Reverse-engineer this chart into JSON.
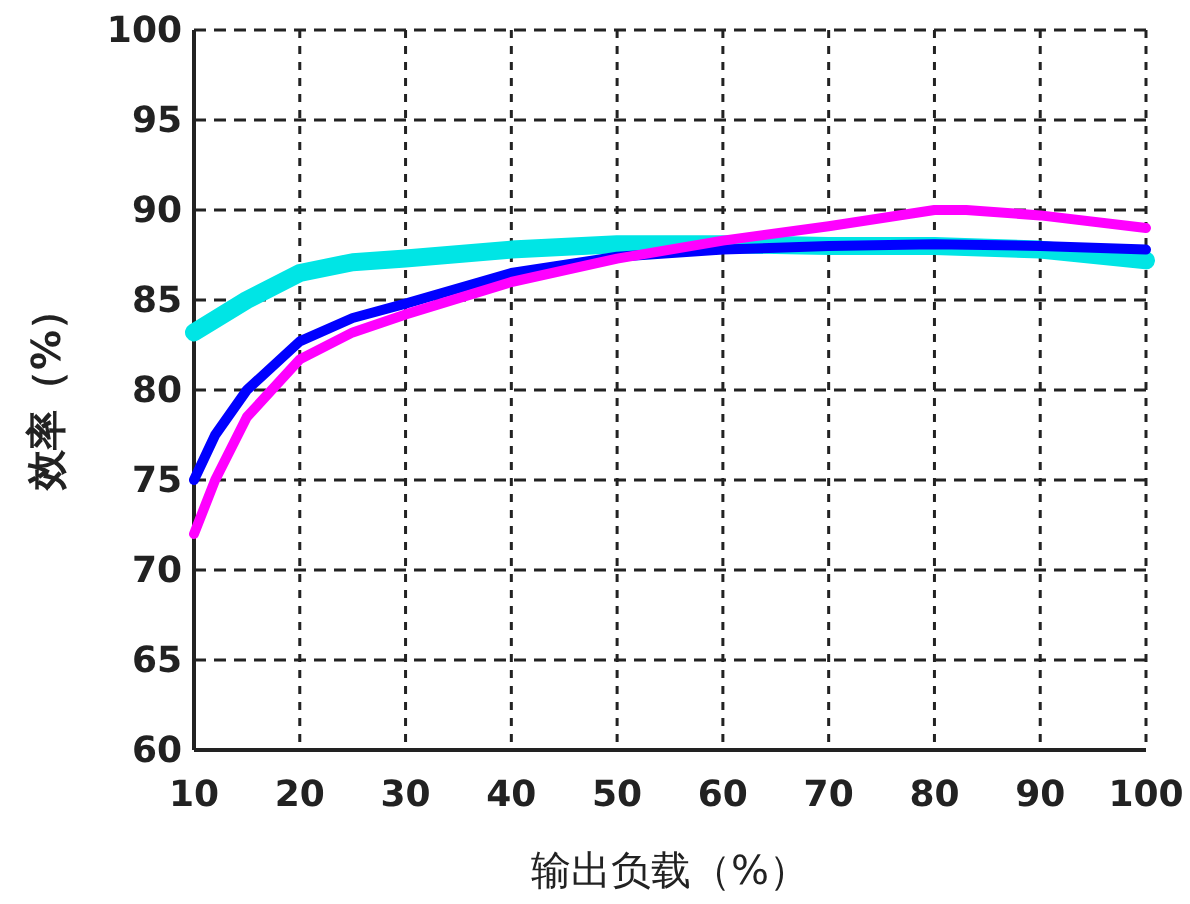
{
  "chart_data": {
    "type": "line",
    "xlabel": "输出负载（%）",
    "ylabel": "效率（%）",
    "xlim": [
      10,
      100
    ],
    "ylim": [
      60,
      100
    ],
    "xticks": [
      10,
      20,
      30,
      40,
      50,
      60,
      70,
      80,
      90,
      100
    ],
    "yticks": [
      60,
      65,
      70,
      75,
      80,
      85,
      90,
      95,
      100
    ],
    "grid": true,
    "line_style": "solid",
    "marker": "none",
    "series": [
      {
        "color": "#00e5e5",
        "x": [
          10,
          15,
          20,
          25,
          30,
          40,
          50,
          60,
          70,
          80,
          90,
          100
        ],
        "values": [
          83.2,
          85,
          86.5,
          87.1,
          87.3,
          87.8,
          88.1,
          88.1,
          88,
          88,
          87.8,
          87.2
        ]
      },
      {
        "color": "#0000ff",
        "x": [
          10,
          12,
          15,
          20,
          25,
          30,
          40,
          50,
          60,
          70,
          80,
          90,
          100
        ],
        "values": [
          75,
          77.5,
          80,
          82.7,
          84,
          84.8,
          86.5,
          87.4,
          87.8,
          88,
          88.1,
          88,
          87.8
        ]
      },
      {
        "color": "#ff00ff",
        "x": [
          10,
          12,
          15,
          20,
          25,
          30,
          40,
          50,
          60,
          70,
          80,
          83,
          90,
          100
        ],
        "values": [
          72,
          75,
          78.5,
          81.7,
          83.2,
          84.2,
          86,
          87.3,
          88.3,
          89.1,
          90,
          90,
          89.7,
          89
        ]
      }
    ]
  }
}
